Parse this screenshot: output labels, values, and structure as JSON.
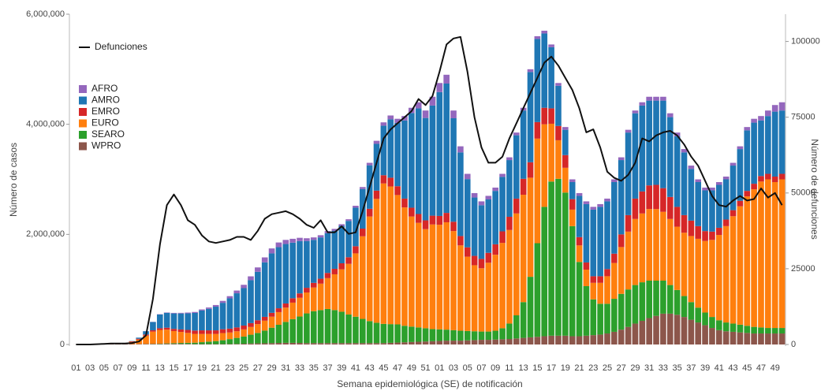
{
  "chart_data": {
    "type": "bar",
    "stacked": true,
    "x_label": "Semana epidemiológica (SE) de notificación",
    "y_label": "Número de casos",
    "y2_label": "Número de defunciones",
    "categories": [
      "01",
      null,
      "03",
      null,
      "05",
      null,
      "07",
      null,
      "09",
      null,
      "11",
      null,
      "13",
      null,
      "15",
      null,
      "17",
      null,
      "19",
      null,
      "21",
      null,
      "23",
      null,
      "25",
      null,
      "27",
      null,
      "29",
      null,
      "31",
      null,
      "33",
      null,
      "35",
      null,
      "37",
      null,
      "39",
      null,
      "41",
      null,
      "43",
      null,
      "45",
      null,
      "47",
      null,
      "49",
      null,
      "51",
      null,
      "01",
      null,
      "03",
      null,
      "05",
      null,
      "07",
      null,
      "09",
      null,
      "11",
      null,
      "13",
      null,
      "15",
      null,
      "17",
      null,
      "19",
      null,
      "21",
      null,
      "23",
      null,
      "25",
      null,
      "27",
      null,
      "29",
      null,
      "31",
      null,
      "33",
      null,
      "35",
      null,
      "37",
      null,
      "39",
      null,
      "41",
      null,
      "43",
      null,
      "45",
      null,
      "47",
      null,
      "49",
      null
    ],
    "ylim": [
      0,
      6000000
    ],
    "yticks": [
      0,
      {
        "value": 2000000,
        "label": "2,000,000"
      },
      {
        "value": 4000000,
        "label": "4,000,000"
      },
      {
        "value": 6000000,
        "label": "6,000,000"
      }
    ],
    "y2lim": [
      0,
      109000
    ],
    "y2ticks": [
      0,
      25000,
      50000,
      75000,
      100000
    ],
    "series": [
      {
        "name": "WPRO",
        "color": "#8c564b",
        "values": [
          1000,
          2000,
          5000,
          15000,
          20000,
          18000,
          12000,
          8000,
          7000,
          8000,
          9000,
          10000,
          10000,
          12000,
          12000,
          12000,
          10000,
          8000,
          7000,
          7000,
          7000,
          7000,
          8000,
          10000,
          14000,
          18000,
          20000,
          22000,
          25000,
          28000,
          30000,
          30000,
          28000,
          25000,
          25000,
          25000,
          25000,
          25000,
          25000,
          25000,
          25000,
          25000,
          25000,
          25000,
          25000,
          30000,
          35000,
          40000,
          45000,
          50000,
          55000,
          60000,
          65000,
          70000,
          70000,
          70000,
          75000,
          80000,
          85000,
          85000,
          90000,
          95000,
          100000,
          110000,
          120000,
          130000,
          140000,
          150000,
          160000,
          160000,
          160000,
          150000,
          150000,
          160000,
          170000,
          180000,
          200000,
          230000,
          270000,
          320000,
          380000,
          430000,
          480000,
          520000,
          560000,
          560000,
          540000,
          500000,
          450000,
          400000,
          350000,
          300000,
          260000,
          240000,
          230000,
          220000,
          210000,
          200000,
          200000,
          200000,
          200000,
          200000
        ]
      },
      {
        "name": "SEARO",
        "color": "#2ca02c",
        "values": [
          0,
          0,
          0,
          0,
          0,
          0,
          0,
          0,
          0,
          1000,
          2000,
          3000,
          5000,
          8000,
          12000,
          16000,
          20000,
          25000,
          35000,
          45000,
          55000,
          70000,
          90000,
          110000,
          130000,
          160000,
          190000,
          230000,
          280000,
          330000,
          380000,
          430000,
          480000,
          540000,
          580000,
          600000,
          620000,
          600000,
          570000,
          520000,
          480000,
          440000,
          400000,
          370000,
          350000,
          340000,
          330000,
          300000,
          280000,
          260000,
          240000,
          220000,
          210000,
          200000,
          190000,
          180000,
          170000,
          160000,
          150000,
          150000,
          160000,
          200000,
          280000,
          420000,
          650000,
          1100000,
          1700000,
          2350000,
          2800000,
          2850000,
          2600000,
          2000000,
          1350000,
          900000,
          650000,
          560000,
          540000,
          600000,
          650000,
          680000,
          700000,
          700000,
          680000,
          640000,
          600000,
          520000,
          450000,
          380000,
          320000,
          270000,
          230000,
          200000,
          180000,
          160000,
          150000,
          140000,
          130000,
          120000,
          110000,
          100000,
          100000,
          100000
        ]
      },
      {
        "name": "EURO",
        "color": "#ff7f0e",
        "values": [
          0,
          0,
          0,
          0,
          0,
          1000,
          5000,
          15000,
          40000,
          80000,
          150000,
          220000,
          250000,
          250000,
          220000,
          200000,
          180000,
          160000,
          150000,
          140000,
          130000,
          130000,
          120000,
          120000,
          130000,
          140000,
          160000,
          180000,
          200000,
          230000,
          260000,
          300000,
          340000,
          380000,
          430000,
          480000,
          560000,
          650000,
          770000,
          920000,
          1150000,
          1500000,
          1900000,
          2250000,
          2550000,
          2500000,
          2350000,
          2150000,
          2000000,
          1900000,
          1800000,
          1900000,
          1900000,
          1950000,
          1800000,
          1550000,
          1350000,
          1200000,
          1150000,
          1250000,
          1380000,
          1550000,
          1700000,
          1850000,
          1950000,
          1800000,
          1900000,
          1500000,
          1050000,
          700000,
          450000,
          300000,
          300000,
          300000,
          300000,
          380000,
          500000,
          650000,
          850000,
          1050000,
          1200000,
          1250000,
          1300000,
          1300000,
          1250000,
          1200000,
          1150000,
          1150000,
          1200000,
          1250000,
          1300000,
          1400000,
          1550000,
          1750000,
          1950000,
          2150000,
          2350000,
          2500000,
          2650000,
          2700000,
          2650000,
          2700000
        ]
      },
      {
        "name": "EMRO",
        "color": "#d62728",
        "values": [
          0,
          0,
          0,
          0,
          0,
          0,
          1000,
          5000,
          10000,
          15000,
          20000,
          25000,
          30000,
          35000,
          40000,
          45000,
          55000,
          60000,
          65000,
          65000,
          65000,
          70000,
          70000,
          70000,
          70000,
          70000,
          70000,
          70000,
          70000,
          70000,
          75000,
          80000,
          80000,
          85000,
          85000,
          90000,
          95000,
          100000,
          110000,
          120000,
          130000,
          140000,
          140000,
          150000,
          150000,
          160000,
          160000,
          160000,
          160000,
          160000,
          160000,
          160000,
          160000,
          170000,
          170000,
          170000,
          170000,
          170000,
          170000,
          180000,
          190000,
          210000,
          240000,
          270000,
          290000,
          280000,
          300000,
          300000,
          280000,
          260000,
          230000,
          190000,
          150000,
          130000,
          120000,
          120000,
          130000,
          170000,
          230000,
          300000,
          370000,
          400000,
          430000,
          440000,
          430000,
          400000,
          360000,
          320000,
          280000,
          230000,
          180000,
          150000,
          130000,
          120000,
          110000,
          100000,
          100000,
          100000,
          100000,
          100000,
          100000,
          100000
        ]
      },
      {
        "name": "AMRO",
        "color": "#1f77b4",
        "values": [
          0,
          0,
          0,
          0,
          0,
          0,
          0,
          1000,
          5000,
          20000,
          60000,
          150000,
          250000,
          270000,
          280000,
          290000,
          300000,
          320000,
          360000,
          390000,
          430000,
          480000,
          550000,
          620000,
          680000,
          780000,
          880000,
          990000,
          1080000,
          1110000,
          1080000,
          1010000,
          950000,
          850000,
          780000,
          750000,
          720000,
          690000,
          680000,
          660000,
          700000,
          720000,
          790000,
          850000,
          900000,
          1060000,
          1150000,
          1420000,
          1720000,
          1920000,
          1860000,
          2000000,
          2250000,
          2350000,
          1880000,
          1520000,
          1240000,
          1060000,
          975000,
          970000,
          970000,
          990000,
          1030000,
          1150000,
          1240000,
          1640000,
          1510000,
          1350000,
          1110000,
          730000,
          460000,
          310000,
          750000,
          1060000,
          1210000,
          1260000,
          1230000,
          1300000,
          1350000,
          1500000,
          1550000,
          1560000,
          1540000,
          1530000,
          1590000,
          1450000,
          1280000,
          1140000,
          940000,
          800000,
          740000,
          750000,
          780000,
          730000,
          810000,
          940000,
          1100000,
          1110000,
          1010000,
          1050000,
          1180000,
          1150000
        ]
      },
      {
        "name": "AFRO",
        "color": "#9467bd",
        "values": [
          0,
          0,
          0,
          0,
          0,
          0,
          0,
          0,
          0,
          1000,
          2000,
          3000,
          5000,
          7000,
          10000,
          12000,
          15000,
          18000,
          20000,
          25000,
          30000,
          35000,
          40000,
          50000,
          60000,
          70000,
          80000,
          90000,
          90000,
          85000,
          75000,
          70000,
          60000,
          50000,
          45000,
          40000,
          40000,
          35000,
          30000,
          30000,
          35000,
          35000,
          45000,
          55000,
          60000,
          70000,
          75000,
          80000,
          95000,
          110000,
          135000,
          160000,
          165000,
          160000,
          140000,
          110000,
          95000,
          80000,
          70000,
          65000,
          60000,
          55000,
          50000,
          50000,
          50000,
          50000,
          50000,
          50000,
          50000,
          50000,
          50000,
          50000,
          50000,
          50000,
          50000,
          50000,
          50000,
          50000,
          50000,
          50000,
          50000,
          60000,
          70000,
          70000,
          70000,
          70000,
          70000,
          60000,
          60000,
          50000,
          50000,
          50000,
          50000,
          50000,
          50000,
          50000,
          60000,
          70000,
          80000,
          100000,
          120000,
          150000
        ]
      },
      {
        "name": "Defunciones",
        "type": "line",
        "axis": "y2",
        "color": "#111111",
        "values": [
          0,
          0,
          0,
          100,
          200,
          300,
          300,
          300,
          500,
          1000,
          3000,
          15000,
          33000,
          46000,
          49500,
          46000,
          41000,
          39500,
          36000,
          34000,
          33500,
          34000,
          34500,
          35500,
          35500,
          34500,
          37500,
          41500,
          43000,
          43500,
          44000,
          43000,
          41500,
          39500,
          38500,
          41000,
          37000,
          37000,
          39000,
          36500,
          37000,
          44000,
          52000,
          60000,
          68000,
          71000,
          73000,
          75000,
          77000,
          81000,
          79000,
          82000,
          90000,
          99000,
          101000,
          101500,
          90000,
          75000,
          65000,
          60000,
          60000,
          62000,
          68000,
          73000,
          78000,
          83000,
          88000,
          93000,
          95000,
          92000,
          88000,
          84000,
          78000,
          70000,
          71000,
          65000,
          57000,
          55000,
          54000,
          56000,
          60000,
          68000,
          67000,
          69000,
          70000,
          70500,
          69000,
          66000,
          62000,
          59000,
          54000,
          49000,
          46000,
          45500,
          47500,
          49000,
          47500,
          48000,
          51500,
          48500,
          50000,
          46000
        ]
      }
    ]
  }
}
